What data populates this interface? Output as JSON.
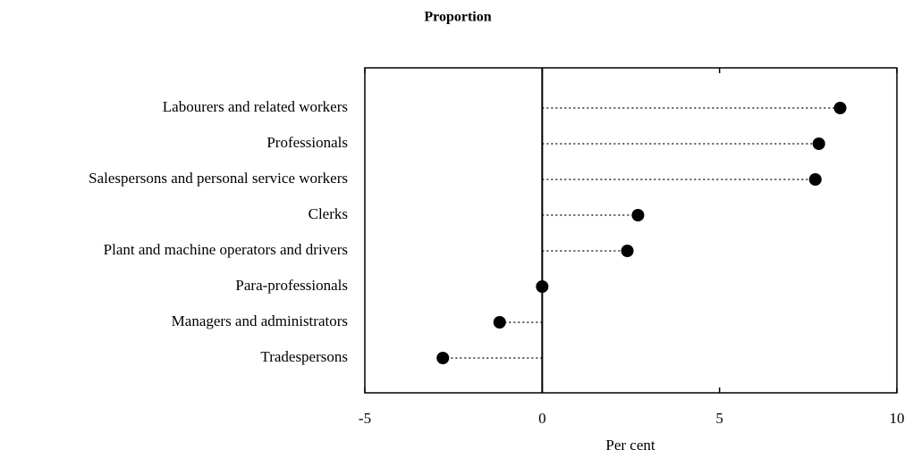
{
  "chart_data": {
    "type": "dot",
    "title": "Proportion",
    "x_label": "Per cent",
    "categories": [
      "Labourers and related workers",
      "Professionals",
      "Salespersons and personal service workers",
      "Clerks",
      "Plant and machine operators and drivers",
      "Para-professionals",
      "Managers and administrators",
      "Tradespersons"
    ],
    "values": [
      8.4,
      7.8,
      7.7,
      2.7,
      2.4,
      0,
      -1.2,
      -2.8
    ],
    "color": "#000000",
    "xlim": [
      -5,
      10
    ],
    "xticks": [
      -5,
      0,
      5,
      10
    ]
  }
}
